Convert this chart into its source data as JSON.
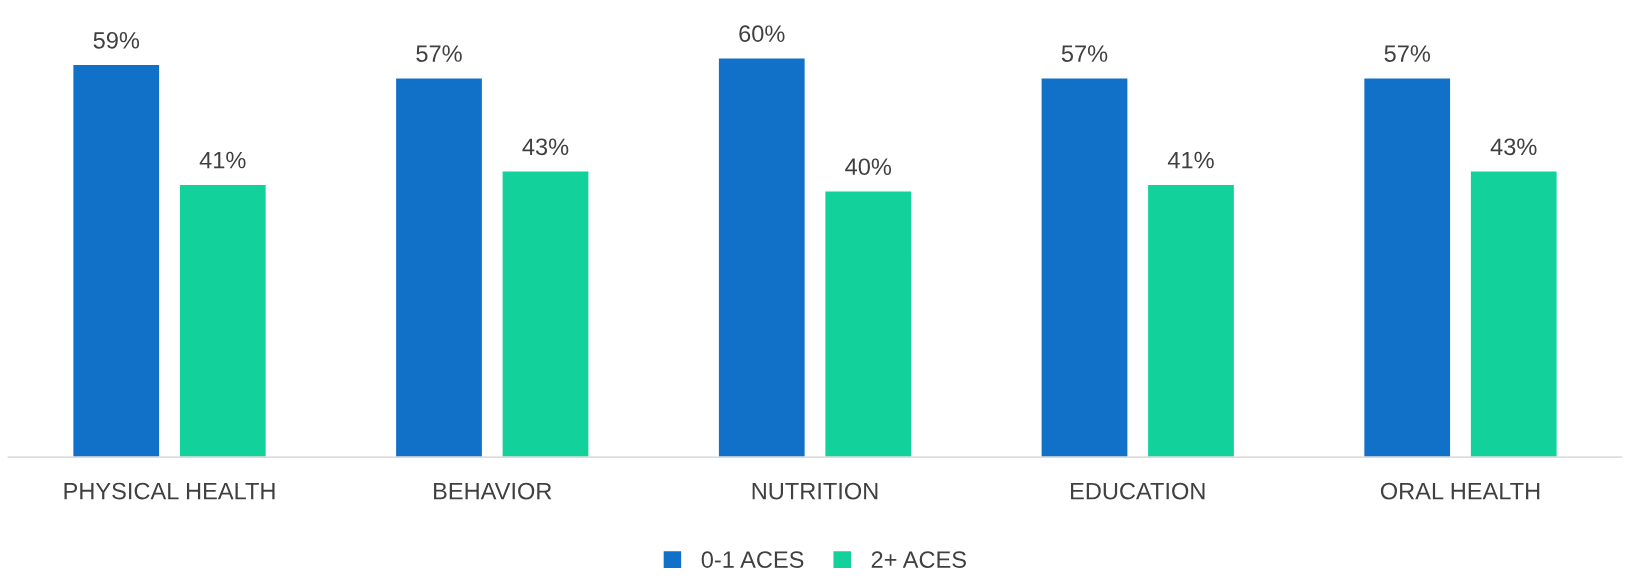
{
  "chart_data": {
    "type": "bar",
    "categories": [
      "PHYSICAL HEALTH",
      "BEHAVIOR",
      "NUTRITION",
      "EDUCATION",
      "ORAL HEALTH"
    ],
    "series": [
      {
        "name": "0-1 ACES",
        "color": "#1170c8",
        "values": [
          59,
          57,
          60,
          57,
          57
        ],
        "value_labels": [
          "59%",
          "57%",
          "60%",
          "57%",
          "57%"
        ]
      },
      {
        "name": "2+ ACES",
        "color": "#12d19b",
        "values": [
          41,
          43,
          40,
          41,
          43
        ],
        "value_labels": [
          "41%",
          "43%",
          "40%",
          "41%",
          "43%"
        ]
      }
    ],
    "tick_labels": "x",
    "grid": false,
    "legend": "bottom"
  }
}
